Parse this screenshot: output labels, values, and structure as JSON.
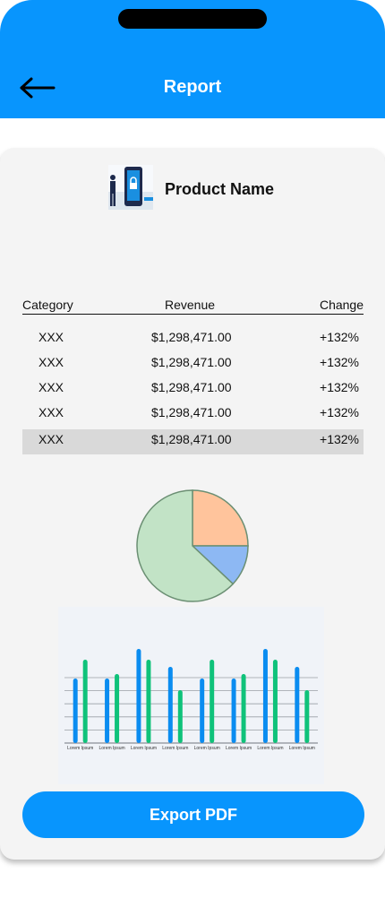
{
  "header": {
    "title": "Report",
    "back_icon": "arrow-left-icon"
  },
  "product": {
    "name": "Product Name",
    "image": "phone-lock-image"
  },
  "table": {
    "columns": [
      "Category",
      "Revenue",
      "Change"
    ],
    "rows": [
      [
        "XXX",
        "$1,298,471.00",
        "+132%"
      ],
      [
        "XXX",
        "$1,298,471.00",
        "+132%"
      ],
      [
        "XXX",
        "$1,298,471.00",
        "+132%"
      ],
      [
        "XXX",
        "$1,298,471.00",
        "+132%"
      ],
      [
        "XXX",
        "$1,298,471.00",
        "+132%"
      ]
    ],
    "highlighted_row": 4
  },
  "chart_data": [
    {
      "type": "pie",
      "slices": [
        {
          "value": 25,
          "color": "#ffc49c"
        },
        {
          "value": 12,
          "color": "#8db8f3"
        },
        {
          "value": 63,
          "color": "#c2e3c6"
        }
      ]
    },
    {
      "type": "bar",
      "categories": [
        "Lorem Ipsum",
        "Lorem Ipsum",
        "Lorem Ipsum",
        "Lorem Ipsum",
        "Lorem Ipsum",
        "Lorem Ipsum",
        "Lorem Ipsum",
        "Lorem Ipsum"
      ],
      "series": [
        {
          "values": [
            72,
            72,
            105,
            85,
            72,
            72,
            105,
            85
          ],
          "color": "#0a8cf0"
        },
        {
          "values": [
            93,
            77,
            93,
            59,
            93,
            77,
            93,
            59
          ],
          "color": "#0fc27a"
        }
      ],
      "ylim": [
        0,
        110
      ],
      "grid": true
    }
  ],
  "actions": {
    "export_label": "Export PDF"
  }
}
